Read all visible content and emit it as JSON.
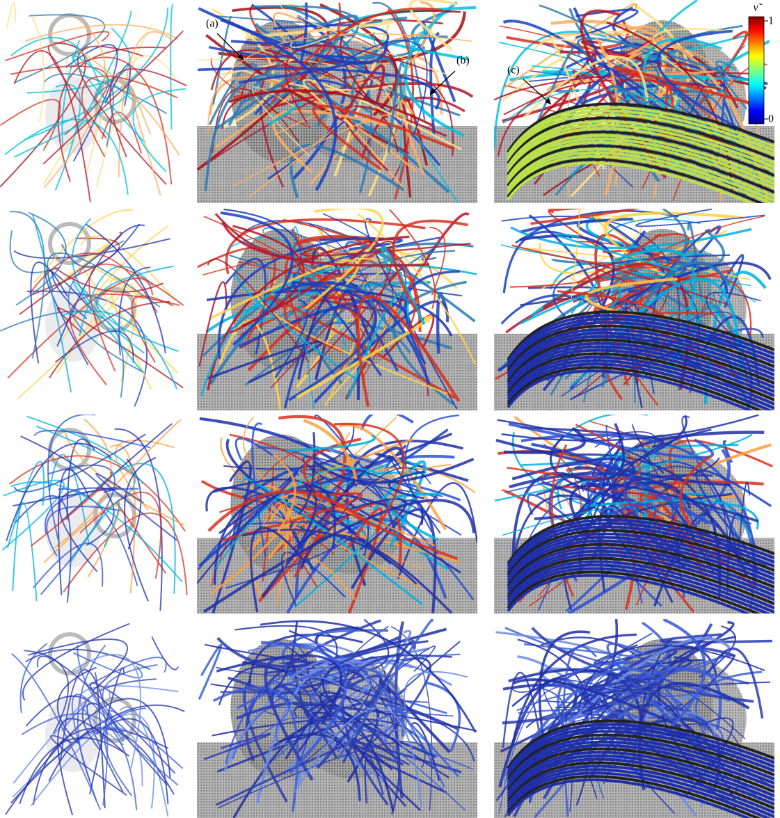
{
  "annotations": {
    "a": "(a)",
    "b": "(b)",
    "c": "(c)"
  },
  "colorbar": {
    "label": "ν̃",
    "max": "1",
    "min": "0"
  }
}
